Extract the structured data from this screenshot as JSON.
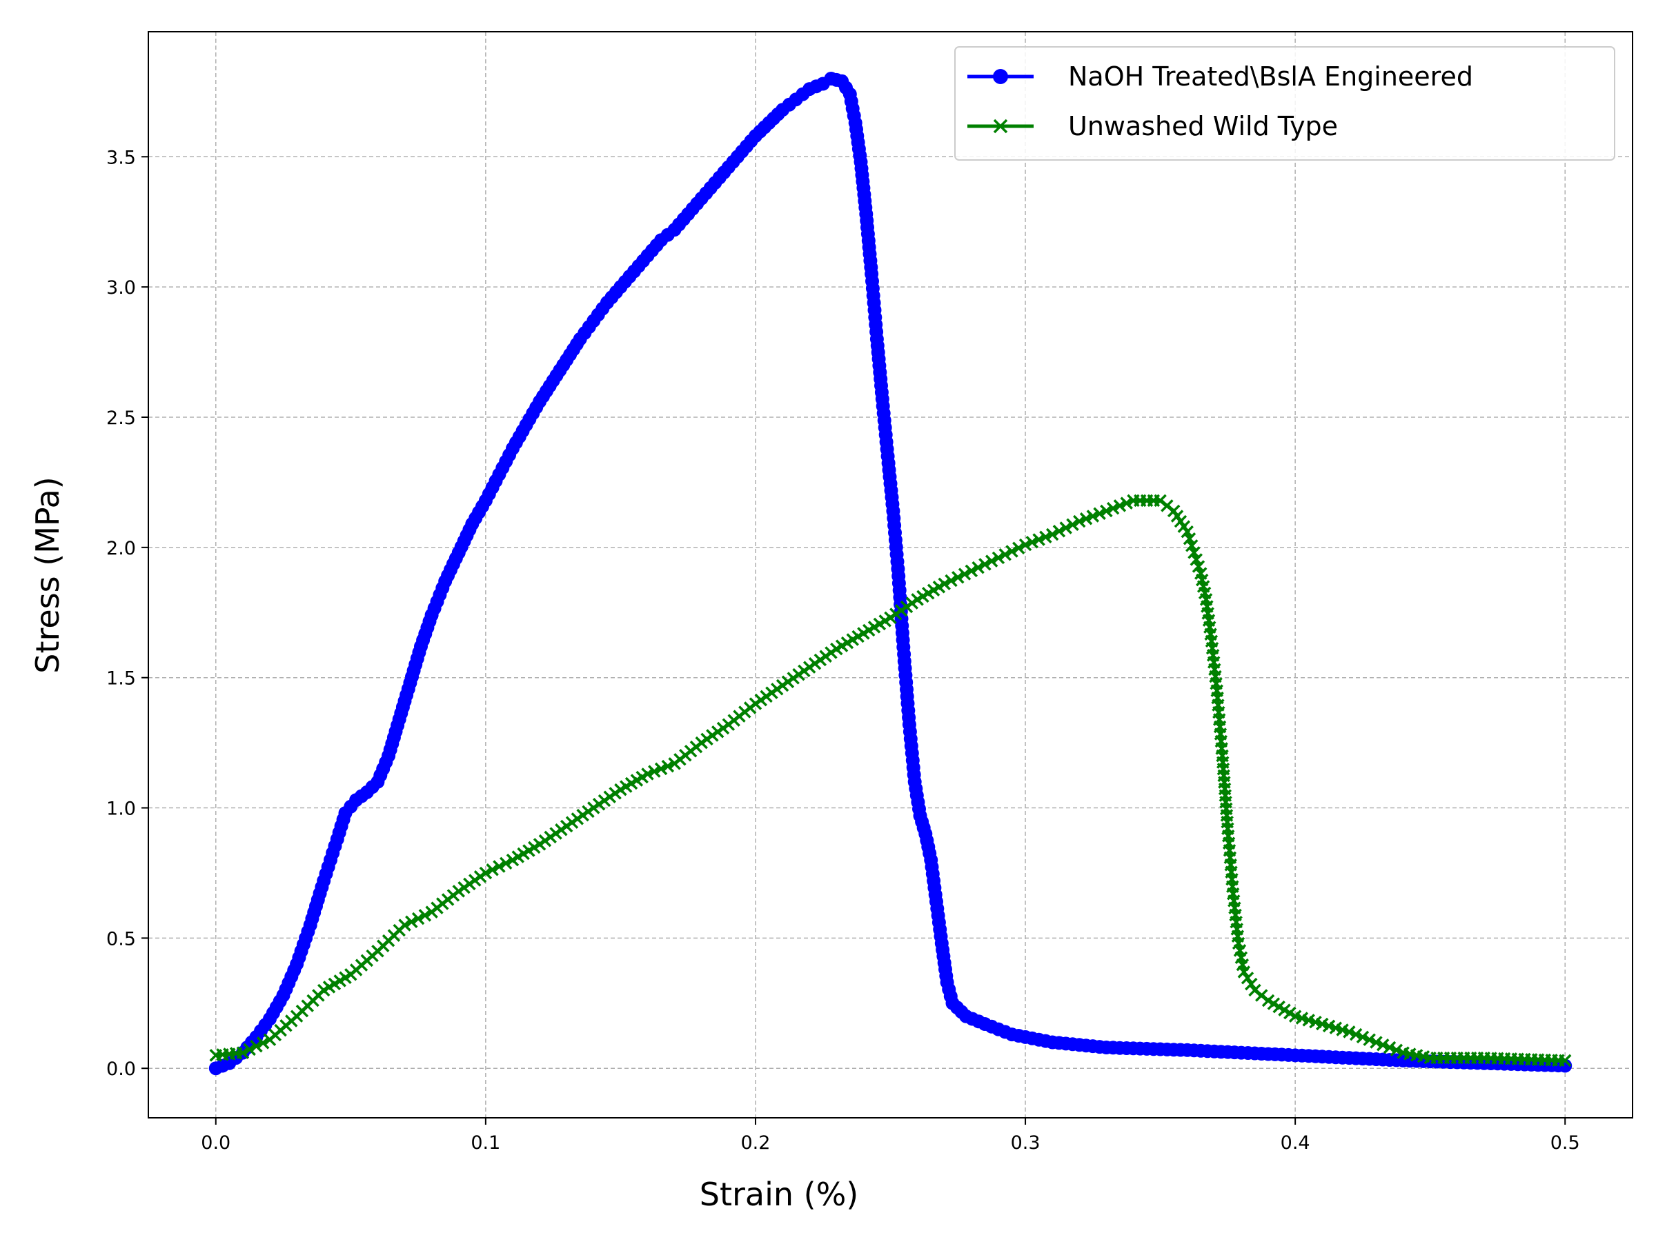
{
  "chart_data": {
    "type": "line",
    "title": "",
    "xlabel": "Strain (%)",
    "ylabel": "Stress (MPa)",
    "xlim": [
      -0.025,
      0.525
    ],
    "ylim": [
      -0.19,
      3.98
    ],
    "x_ticks": [
      0.0,
      0.1,
      0.2,
      0.3,
      0.4,
      0.5
    ],
    "x_tick_labels": [
      "0.0",
      "0.1",
      "0.2",
      "0.3",
      "0.4",
      "0.5"
    ],
    "y_ticks": [
      0.0,
      0.5,
      1.0,
      1.5,
      2.0,
      2.5,
      3.0,
      3.5
    ],
    "y_tick_labels": [
      "0.0",
      "0.5",
      "1.0",
      "1.5",
      "2.0",
      "2.5",
      "3.0",
      "3.5"
    ],
    "grid": true,
    "legend_position": "top-right",
    "series": [
      {
        "name": "NaOH Treated\\BslA Engineered",
        "color": "#0000ff",
        "marker": "circle",
        "points": [
          [
            0.0,
            0.0
          ],
          [
            0.005,
            0.02
          ],
          [
            0.01,
            0.06
          ],
          [
            0.015,
            0.12
          ],
          [
            0.02,
            0.19
          ],
          [
            0.025,
            0.28
          ],
          [
            0.03,
            0.4
          ],
          [
            0.035,
            0.55
          ],
          [
            0.04,
            0.72
          ],
          [
            0.045,
            0.88
          ],
          [
            0.048,
            0.98
          ],
          [
            0.052,
            1.03
          ],
          [
            0.056,
            1.06
          ],
          [
            0.06,
            1.1
          ],
          [
            0.064,
            1.2
          ],
          [
            0.068,
            1.34
          ],
          [
            0.072,
            1.48
          ],
          [
            0.076,
            1.62
          ],
          [
            0.08,
            1.74
          ],
          [
            0.085,
            1.87
          ],
          [
            0.09,
            1.98
          ],
          [
            0.095,
            2.09
          ],
          [
            0.1,
            2.18
          ],
          [
            0.105,
            2.28
          ],
          [
            0.11,
            2.38
          ],
          [
            0.115,
            2.47
          ],
          [
            0.12,
            2.56
          ],
          [
            0.125,
            2.64
          ],
          [
            0.13,
            2.72
          ],
          [
            0.135,
            2.8
          ],
          [
            0.14,
            2.87
          ],
          [
            0.145,
            2.94
          ],
          [
            0.15,
            3.0
          ],
          [
            0.155,
            3.06
          ],
          [
            0.16,
            3.12
          ],
          [
            0.165,
            3.18
          ],
          [
            0.17,
            3.22
          ],
          [
            0.175,
            3.28
          ],
          [
            0.18,
            3.34
          ],
          [
            0.185,
            3.4
          ],
          [
            0.19,
            3.46
          ],
          [
            0.195,
            3.52
          ],
          [
            0.2,
            3.58
          ],
          [
            0.205,
            3.63
          ],
          [
            0.21,
            3.68
          ],
          [
            0.215,
            3.72
          ],
          [
            0.22,
            3.76
          ],
          [
            0.225,
            3.78
          ],
          [
            0.228,
            3.8
          ],
          [
            0.232,
            3.79
          ],
          [
            0.235,
            3.74
          ],
          [
            0.237,
            3.63
          ],
          [
            0.239,
            3.48
          ],
          [
            0.241,
            3.28
          ],
          [
            0.243,
            3.05
          ],
          [
            0.245,
            2.8
          ],
          [
            0.247,
            2.57
          ],
          [
            0.249,
            2.35
          ],
          [
            0.251,
            2.14
          ],
          [
            0.253,
            1.89
          ],
          [
            0.255,
            1.59
          ],
          [
            0.257,
            1.32
          ],
          [
            0.259,
            1.1
          ],
          [
            0.261,
            0.97
          ],
          [
            0.263,
            0.9
          ],
          [
            0.265,
            0.8
          ],
          [
            0.267,
            0.64
          ],
          [
            0.269,
            0.48
          ],
          [
            0.271,
            0.33
          ],
          [
            0.273,
            0.25
          ],
          [
            0.278,
            0.2
          ],
          [
            0.285,
            0.17
          ],
          [
            0.295,
            0.13
          ],
          [
            0.31,
            0.1
          ],
          [
            0.33,
            0.08
          ],
          [
            0.36,
            0.07
          ],
          [
            0.4,
            0.05
          ],
          [
            0.44,
            0.03
          ],
          [
            0.47,
            0.02
          ],
          [
            0.5,
            0.01
          ]
        ]
      },
      {
        "name": "Unwashed Wild Type",
        "color": "#008000",
        "marker": "x",
        "points": [
          [
            0.0,
            0.05
          ],
          [
            0.01,
            0.06
          ],
          [
            0.02,
            0.11
          ],
          [
            0.03,
            0.2
          ],
          [
            0.04,
            0.3
          ],
          [
            0.05,
            0.36
          ],
          [
            0.06,
            0.45
          ],
          [
            0.07,
            0.55
          ],
          [
            0.08,
            0.6
          ],
          [
            0.09,
            0.68
          ],
          [
            0.1,
            0.75
          ],
          [
            0.11,
            0.8
          ],
          [
            0.12,
            0.86
          ],
          [
            0.13,
            0.93
          ],
          [
            0.14,
            1.0
          ],
          [
            0.15,
            1.07
          ],
          [
            0.16,
            1.13
          ],
          [
            0.17,
            1.17
          ],
          [
            0.18,
            1.25
          ],
          [
            0.19,
            1.32
          ],
          [
            0.2,
            1.4
          ],
          [
            0.21,
            1.47
          ],
          [
            0.22,
            1.54
          ],
          [
            0.23,
            1.61
          ],
          [
            0.24,
            1.67
          ],
          [
            0.25,
            1.73
          ],
          [
            0.26,
            1.8
          ],
          [
            0.27,
            1.86
          ],
          [
            0.28,
            1.91
          ],
          [
            0.29,
            1.96
          ],
          [
            0.3,
            2.01
          ],
          [
            0.31,
            2.05
          ],
          [
            0.32,
            2.1
          ],
          [
            0.33,
            2.14
          ],
          [
            0.34,
            2.18
          ],
          [
            0.35,
            2.18
          ],
          [
            0.355,
            2.14
          ],
          [
            0.36,
            2.06
          ],
          [
            0.365,
            1.9
          ],
          [
            0.367,
            1.8
          ],
          [
            0.369,
            1.64
          ],
          [
            0.371,
            1.45
          ],
          [
            0.373,
            1.2
          ],
          [
            0.375,
            0.92
          ],
          [
            0.377,
            0.67
          ],
          [
            0.379,
            0.48
          ],
          [
            0.381,
            0.37
          ],
          [
            0.385,
            0.3
          ],
          [
            0.39,
            0.26
          ],
          [
            0.4,
            0.2
          ],
          [
            0.41,
            0.17
          ],
          [
            0.42,
            0.14
          ],
          [
            0.43,
            0.1
          ],
          [
            0.44,
            0.06
          ],
          [
            0.45,
            0.04
          ],
          [
            0.47,
            0.04
          ],
          [
            0.5,
            0.03
          ]
        ]
      }
    ]
  }
}
